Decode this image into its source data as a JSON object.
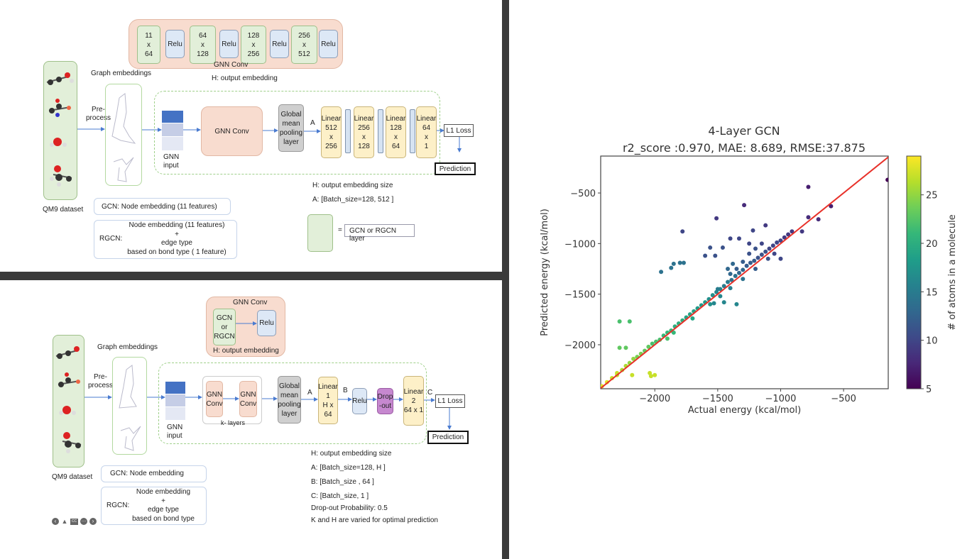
{
  "top_diagram": {
    "gnn_conv_layers": [
      {
        "dims": [
          "11",
          "x",
          "64"
        ],
        "act": "Relu"
      },
      {
        "dims": [
          "64",
          "x",
          "128"
        ],
        "act": "Relu"
      },
      {
        "dims": [
          "128",
          "x",
          "256"
        ],
        "act": "Relu"
      },
      {
        "dims": [
          "256",
          "x",
          "512"
        ],
        "act": "Relu"
      }
    ],
    "gnn_conv_label": "GNN Conv",
    "h_output_embedding": "H: output embedding",
    "graph_embeddings": "Graph embeddings",
    "preprocess": [
      "Pre-",
      "process"
    ],
    "gnn_input": [
      "GNN",
      "input"
    ],
    "gnn_conv": "GNN Conv",
    "pooling": [
      "Global",
      "mean",
      "pooling",
      "layer"
    ],
    "a_label": "A",
    "linears": [
      [
        "Linear",
        "512",
        "x",
        "256"
      ],
      [
        "Linear",
        "256",
        "x",
        "128"
      ],
      [
        "Linear",
        "128",
        "x",
        "64"
      ],
      [
        "Linear",
        "64",
        "x",
        "1"
      ]
    ],
    "l1_loss": "L1 Loss",
    "prediction": "Prediction",
    "qm9": "QM9 dataset",
    "gcn_box": "GCN: Node embedding (11 features)",
    "rgcn_label": "RGCN:",
    "rgcn_lines": [
      "Node embedding (11 features)",
      "+",
      "edge type",
      "based on bond type ( 1 feature)"
    ],
    "notes": [
      "H: output embedding size",
      "A:  [Batch_size=128, 512 ]"
    ],
    "legend_eq": "=",
    "legend_text": "GCN or RGCN layer"
  },
  "bottom_diagram": {
    "gnn_conv_label": "GNN Conv",
    "gcn_or_rgcn": [
      "GCN",
      "or",
      "RGCN"
    ],
    "relu": "Relu",
    "h_output_embedding": "H: output embedding",
    "graph_embeddings": "Graph embeddings",
    "preprocess": [
      "Pre-",
      "process"
    ],
    "gnn_input": [
      "GNN",
      "input"
    ],
    "conv_blocks": [
      [
        "GNN",
        "Conv"
      ],
      [
        "GNN",
        "Conv"
      ]
    ],
    "k_layers": "k- layers",
    "pooling": [
      "Global",
      "mean",
      "pooling",
      "layer"
    ],
    "a_label": "A",
    "b_label": "B",
    "c_label": "C",
    "linear1": [
      "Linear",
      "1",
      "H x 64"
    ],
    "dropout": [
      "Drop",
      "-out"
    ],
    "linear2": [
      "Linear",
      "2",
      "64 x 1"
    ],
    "l1_loss": "L1 Loss",
    "prediction": "Prediction",
    "qm9": "QM9 dataset",
    "gcn_box": "GCN: Node embedding",
    "rgcn_label": "RGCN:",
    "rgcn_lines": [
      "Node embedding",
      "+",
      "edge type",
      "based on bond type"
    ],
    "notes": [
      "H: output embedding size",
      "A:  [Batch_size=128, H ]",
      "B:   [Batch_size , 64 ]",
      "C:   [Batch_size, 1 ]",
      "Drop-out Probability:   0.5",
      "K and H are varied for optimal prediction"
    ],
    "slide_controls": [
      "previous-icon",
      "pencil-icon",
      "captions-icon",
      "more-icon",
      "next-icon"
    ]
  },
  "chart_data": {
    "type": "scatter",
    "title": "4-Layer GCN",
    "subtitle": "r2_score :0.970, MAE: 8.689, RMSE:37.875",
    "xlabel": "Actual energy (kcal/mol)",
    "ylabel": "Predicted energy (kcal/mol)",
    "colorbar_label": "# of atoms in a molecule",
    "xlim": [
      -2430,
      -145
    ],
    "ylim": [
      -2435,
      -135
    ],
    "xticks": [
      -2000,
      -1500,
      -1000,
      -500
    ],
    "yticks": [
      -500,
      -1000,
      -1500,
      -2000
    ],
    "xtick_labels": [
      "−2000",
      "−1500",
      "−1000",
      "−500"
    ],
    "ytick_labels": [
      "−500",
      "−1000",
      "−1500",
      "−2000"
    ],
    "colorbar_ticks": [
      "5",
      "10",
      "15",
      "20",
      "25"
    ],
    "colorbar_range": [
      5,
      29
    ],
    "reference_line": {
      "from": [
        -2430,
        -2430
      ],
      "to": [
        -145,
        -145
      ],
      "color": "#e8312a"
    },
    "points": [
      [
        -2420,
        -2410,
        28
      ],
      [
        -2380,
        -2370,
        28
      ],
      [
        -2340,
        -2330,
        27
      ],
      [
        -2300,
        -2280,
        27
      ],
      [
        -2260,
        -2250,
        26
      ],
      [
        -2230,
        -2210,
        26
      ],
      [
        -2200,
        -2180,
        25
      ],
      [
        -2170,
        -2140,
        25
      ],
      [
        -2140,
        -2120,
        24
      ],
      [
        -2110,
        -2090,
        24
      ],
      [
        -2080,
        -2060,
        23
      ],
      [
        -2050,
        -2020,
        23
      ],
      [
        -2020,
        -1990,
        22
      ],
      [
        -1990,
        -1970,
        22
      ],
      [
        -1960,
        -1950,
        22
      ],
      [
        -1930,
        -1910,
        21
      ],
      [
        -1900,
        -1880,
        21
      ],
      [
        -1870,
        -1860,
        21
      ],
      [
        -1840,
        -1820,
        20
      ],
      [
        -1810,
        -1790,
        20
      ],
      [
        -1780,
        -1760,
        20
      ],
      [
        -1750,
        -1730,
        19
      ],
      [
        -1720,
        -1700,
        19
      ],
      [
        -1690,
        -1670,
        19
      ],
      [
        -1660,
        -1640,
        18
      ],
      [
        -1630,
        -1610,
        18
      ],
      [
        -1600,
        -1580,
        18
      ],
      [
        -1570,
        -1550,
        17
      ],
      [
        -1540,
        -1510,
        17
      ],
      [
        -1510,
        -1480,
        16
      ],
      [
        -1480,
        -1450,
        16
      ],
      [
        -1450,
        -1420,
        15
      ],
      [
        -1420,
        -1380,
        15
      ],
      [
        -1390,
        -1360,
        14
      ],
      [
        -1360,
        -1320,
        14
      ],
      [
        -1330,
        -1290,
        13
      ],
      [
        -1300,
        -1260,
        13
      ],
      [
        -1270,
        -1220,
        12
      ],
      [
        -1240,
        -1190,
        12
      ],
      [
        -1210,
        -1170,
        12
      ],
      [
        -1180,
        -1140,
        11
      ],
      [
        -1150,
        -1110,
        11
      ],
      [
        -1120,
        -1080,
        11
      ],
      [
        -1090,
        -1050,
        10
      ],
      [
        -1060,
        -1020,
        10
      ],
      [
        -1030,
        -990,
        10
      ],
      [
        -1000,
        -970,
        10
      ],
      [
        -970,
        -940,
        9
      ],
      [
        -940,
        -910,
        9
      ],
      [
        -910,
        -880,
        9
      ],
      [
        -1900,
        -1940,
        22
      ],
      [
        -1850,
        -1880,
        21
      ],
      [
        -1700,
        -1740,
        19
      ],
      [
        -1560,
        -1600,
        17
      ],
      [
        -1480,
        -1520,
        16
      ],
      [
        -1400,
        -1440,
        15
      ],
      [
        -1300,
        -1350,
        14
      ],
      [
        -1200,
        -1250,
        12
      ],
      [
        -1100,
        -1150,
        11
      ],
      [
        -1050,
        -1100,
        10
      ],
      [
        -1500,
        -1450,
        15
      ],
      [
        -1400,
        -1300,
        13
      ],
      [
        -1350,
        -1250,
        12
      ],
      [
        -1300,
        -1180,
        12
      ],
      [
        -1250,
        -1100,
        11
      ],
      [
        -1200,
        -1050,
        11
      ],
      [
        -1150,
        -1000,
        10
      ],
      [
        -1420,
        -1250,
        13
      ],
      [
        -1380,
        -1200,
        13
      ],
      [
        -150,
        -370,
        5
      ],
      [
        -780,
        -440,
        7
      ],
      [
        -600,
        -630,
        7
      ],
      [
        -700,
        -760,
        8
      ],
      [
        -780,
        -740,
        8
      ],
      [
        -830,
        -880,
        9
      ],
      [
        -1290,
        -620,
        8
      ],
      [
        -1510,
        -750,
        9
      ],
      [
        -1780,
        -880,
        10
      ],
      [
        -1400,
        -950,
        10
      ],
      [
        -1330,
        -950,
        10
      ],
      [
        -1220,
        -870,
        10
      ],
      [
        -1120,
        -820,
        9
      ],
      [
        -1250,
        -1000,
        10
      ],
      [
        -1560,
        -1040,
        11
      ],
      [
        -1600,
        -1120,
        11
      ],
      [
        -1520,
        -1120,
        11
      ],
      [
        -1460,
        -1040,
        11
      ],
      [
        -1000,
        -1150,
        10
      ],
      [
        -1950,
        -1280,
        14
      ],
      [
        -1870,
        -1240,
        14
      ],
      [
        -1850,
        -1200,
        14
      ],
      [
        -1770,
        -1190,
        14
      ],
      [
        -1800,
        -1190,
        14
      ],
      [
        -1350,
        -1600,
        16
      ],
      [
        -1450,
        -1580,
        16
      ],
      [
        -1530,
        -1590,
        16
      ],
      [
        -2280,
        -1770,
        22
      ],
      [
        -2200,
        -1770,
        22
      ],
      [
        -2280,
        -2030,
        23
      ],
      [
        -2230,
        -2030,
        23
      ],
      [
        -2300,
        -2300,
        27
      ],
      [
        -2180,
        -2300,
        27
      ],
      [
        -2040,
        -2280,
        27
      ],
      [
        -2000,
        -2300,
        27
      ],
      [
        -2030,
        -2310,
        27
      ]
    ]
  }
}
